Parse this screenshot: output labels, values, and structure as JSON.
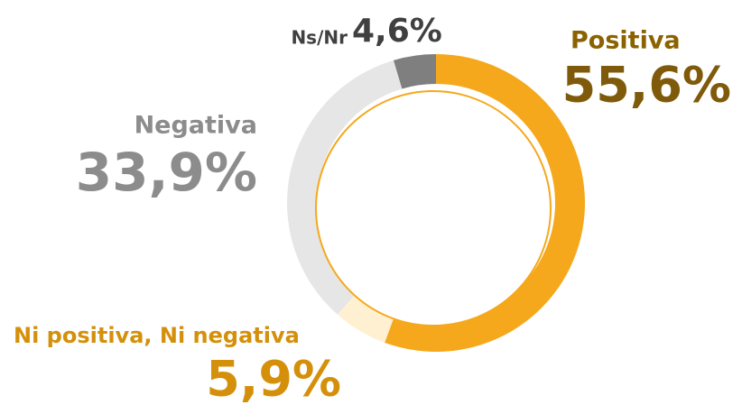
{
  "chart_data": {
    "type": "donut",
    "categories": [
      "Positiva",
      "Ni positiva, Ni negativa",
      "Negativa",
      "Ns/Nr"
    ],
    "values": [
      55.6,
      5.9,
      33.9,
      4.6
    ],
    "value_labels": [
      "55,6%",
      "5,9%",
      "33,9%",
      "4,6%"
    ],
    "colors": [
      "#F5A81C",
      "#FFF0D2",
      "#E6E6E6",
      "#7F7F7F"
    ]
  }
}
